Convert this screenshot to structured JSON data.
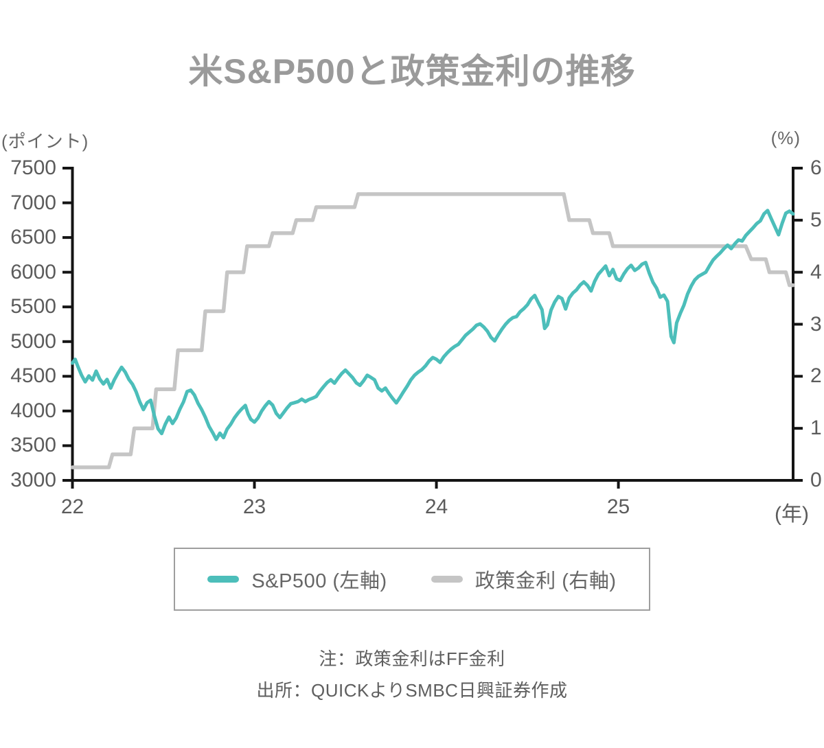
{
  "title": "米S&P500と政策金利の推移",
  "legend": {
    "items": [
      {
        "label": "S&P500 (左軸)",
        "color": "#4cbeba"
      },
      {
        "label": "政策金利 (右軸)",
        "color": "#c5c5c5"
      }
    ]
  },
  "notes": {
    "note": "注：政策金利はFF金利",
    "source": "出所：QUICKよりSMBC日興証券作成"
  },
  "chart_data": {
    "type": "line",
    "title": "米S&P500と政策金利の推移",
    "grid": false,
    "legend_position": "bottom",
    "x_axis": {
      "min": 22,
      "max": 25.96,
      "ticks": [
        22,
        23,
        24,
        25
      ],
      "unit_label": "(年)"
    },
    "left_axis": {
      "label": "(ポイント)",
      "min": 3000,
      "max": 7500,
      "tick_step": 500,
      "ticks": [
        7500,
        7000,
        6500,
        6000,
        5500,
        5000,
        4500,
        4000,
        3500,
        3000
      ]
    },
    "right_axis": {
      "label": "(%)",
      "min": 0,
      "max": 6,
      "tick_step": 1,
      "ticks": [
        6,
        5,
        4,
        3,
        2,
        1,
        0
      ]
    },
    "series": [
      {
        "name": "S&P500 (左軸)",
        "axis": "left",
        "color": "#4cbeba",
        "stroke_width": 5,
        "points": [
          [
            22.0,
            4690
          ],
          [
            22.015,
            4745
          ],
          [
            22.03,
            4640
          ],
          [
            22.05,
            4515
          ],
          [
            22.07,
            4420
          ],
          [
            22.09,
            4505
          ],
          [
            22.11,
            4445
          ],
          [
            22.13,
            4575
          ],
          [
            22.15,
            4460
          ],
          [
            22.17,
            4390
          ],
          [
            22.19,
            4455
          ],
          [
            22.21,
            4330
          ],
          [
            22.23,
            4450
          ],
          [
            22.25,
            4545
          ],
          [
            22.27,
            4630
          ],
          [
            22.29,
            4560
          ],
          [
            22.31,
            4455
          ],
          [
            22.33,
            4385
          ],
          [
            22.35,
            4275
          ],
          [
            22.37,
            4130
          ],
          [
            22.39,
            4020
          ],
          [
            22.41,
            4120
          ],
          [
            22.43,
            4155
          ],
          [
            22.45,
            3930
          ],
          [
            22.47,
            3745
          ],
          [
            22.49,
            3675
          ],
          [
            22.51,
            3810
          ],
          [
            22.53,
            3912
          ],
          [
            22.55,
            3820
          ],
          [
            22.57,
            3900
          ],
          [
            22.59,
            4025
          ],
          [
            22.61,
            4130
          ],
          [
            22.63,
            4280
          ],
          [
            22.65,
            4300
          ],
          [
            22.67,
            4230
          ],
          [
            22.69,
            4110
          ],
          [
            22.71,
            4020
          ],
          [
            22.73,
            3910
          ],
          [
            22.75,
            3780
          ],
          [
            22.77,
            3690
          ],
          [
            22.79,
            3590
          ],
          [
            22.81,
            3680
          ],
          [
            22.83,
            3615
          ],
          [
            22.85,
            3740
          ],
          [
            22.87,
            3810
          ],
          [
            22.89,
            3900
          ],
          [
            22.91,
            3970
          ],
          [
            22.93,
            4030
          ],
          [
            22.95,
            4080
          ],
          [
            22.965,
            3960
          ],
          [
            22.98,
            3880
          ],
          [
            23.0,
            3840
          ],
          [
            23.02,
            3900
          ],
          [
            23.04,
            4000
          ],
          [
            23.06,
            4075
          ],
          [
            23.08,
            4135
          ],
          [
            23.1,
            4085
          ],
          [
            23.12,
            3965
          ],
          [
            23.14,
            3905
          ],
          [
            23.16,
            3975
          ],
          [
            23.18,
            4045
          ],
          [
            23.2,
            4105
          ],
          [
            23.22,
            4120
          ],
          [
            23.24,
            4135
          ],
          [
            23.26,
            4170
          ],
          [
            23.28,
            4135
          ],
          [
            23.3,
            4165
          ],
          [
            23.32,
            4185
          ],
          [
            23.34,
            4210
          ],
          [
            23.36,
            4285
          ],
          [
            23.38,
            4350
          ],
          [
            23.4,
            4410
          ],
          [
            23.42,
            4450
          ],
          [
            23.44,
            4400
          ],
          [
            23.46,
            4475
          ],
          [
            23.48,
            4540
          ],
          [
            23.5,
            4589
          ],
          [
            23.52,
            4535
          ],
          [
            23.54,
            4480
          ],
          [
            23.56,
            4405
          ],
          [
            23.58,
            4370
          ],
          [
            23.6,
            4435
          ],
          [
            23.62,
            4515
          ],
          [
            23.64,
            4485
          ],
          [
            23.66,
            4450
          ],
          [
            23.68,
            4330
          ],
          [
            23.7,
            4290
          ],
          [
            23.72,
            4330
          ],
          [
            23.74,
            4250
          ],
          [
            23.76,
            4180
          ],
          [
            23.78,
            4117
          ],
          [
            23.8,
            4195
          ],
          [
            23.82,
            4280
          ],
          [
            23.84,
            4360
          ],
          [
            23.86,
            4450
          ],
          [
            23.88,
            4515
          ],
          [
            23.9,
            4560
          ],
          [
            23.92,
            4595
          ],
          [
            23.94,
            4650
          ],
          [
            23.96,
            4720
          ],
          [
            23.98,
            4770
          ],
          [
            24.0,
            4745
          ],
          [
            24.02,
            4700
          ],
          [
            24.04,
            4780
          ],
          [
            24.06,
            4840
          ],
          [
            24.08,
            4890
          ],
          [
            24.1,
            4930
          ],
          [
            24.12,
            4960
          ],
          [
            24.14,
            5025
          ],
          [
            24.16,
            5090
          ],
          [
            24.18,
            5135
          ],
          [
            24.2,
            5180
          ],
          [
            24.22,
            5235
          ],
          [
            24.24,
            5255
          ],
          [
            24.26,
            5210
          ],
          [
            24.28,
            5150
          ],
          [
            24.3,
            5060
          ],
          [
            24.32,
            5010
          ],
          [
            24.34,
            5100
          ],
          [
            24.36,
            5180
          ],
          [
            24.38,
            5250
          ],
          [
            24.4,
            5305
          ],
          [
            24.42,
            5345
          ],
          [
            24.44,
            5360
          ],
          [
            24.46,
            5430
          ],
          [
            24.48,
            5475
          ],
          [
            24.5,
            5530
          ],
          [
            24.52,
            5615
          ],
          [
            24.54,
            5665
          ],
          [
            24.56,
            5560
          ],
          [
            24.58,
            5460
          ],
          [
            24.595,
            5190
          ],
          [
            24.61,
            5240
          ],
          [
            24.63,
            5455
          ],
          [
            24.65,
            5570
          ],
          [
            24.67,
            5650
          ],
          [
            24.69,
            5620
          ],
          [
            24.71,
            5470
          ],
          [
            24.73,
            5630
          ],
          [
            24.75,
            5700
          ],
          [
            24.77,
            5745
          ],
          [
            24.79,
            5815
          ],
          [
            24.81,
            5860
          ],
          [
            24.83,
            5810
          ],
          [
            24.85,
            5730
          ],
          [
            24.87,
            5870
          ],
          [
            24.89,
            5970
          ],
          [
            24.91,
            6030
          ],
          [
            24.93,
            6090
          ],
          [
            24.95,
            5950
          ],
          [
            24.97,
            6040
          ],
          [
            24.99,
            5905
          ],
          [
            25.01,
            5880
          ],
          [
            25.03,
            5975
          ],
          [
            25.05,
            6050
          ],
          [
            25.07,
            6100
          ],
          [
            25.09,
            6025
          ],
          [
            25.11,
            6060
          ],
          [
            25.13,
            6115
          ],
          [
            25.15,
            6140
          ],
          [
            25.17,
            5985
          ],
          [
            25.19,
            5855
          ],
          [
            25.21,
            5770
          ],
          [
            25.23,
            5640
          ],
          [
            25.25,
            5670
          ],
          [
            25.27,
            5580
          ],
          [
            25.29,
            5075
          ],
          [
            25.305,
            4985
          ],
          [
            25.32,
            5270
          ],
          [
            25.34,
            5405
          ],
          [
            25.36,
            5525
          ],
          [
            25.38,
            5685
          ],
          [
            25.4,
            5800
          ],
          [
            25.42,
            5890
          ],
          [
            25.44,
            5940
          ],
          [
            25.46,
            5970
          ],
          [
            25.48,
            6000
          ],
          [
            25.5,
            6090
          ],
          [
            25.52,
            6175
          ],
          [
            25.54,
            6230
          ],
          [
            25.56,
            6280
          ],
          [
            25.58,
            6340
          ],
          [
            25.6,
            6390
          ],
          [
            25.62,
            6340
          ],
          [
            25.64,
            6410
          ],
          [
            25.66,
            6465
          ],
          [
            25.68,
            6450
          ],
          [
            25.7,
            6530
          ],
          [
            25.72,
            6585
          ],
          [
            25.74,
            6640
          ],
          [
            25.76,
            6700
          ],
          [
            25.78,
            6740
          ],
          [
            25.8,
            6840
          ],
          [
            25.82,
            6890
          ],
          [
            25.84,
            6770
          ],
          [
            25.86,
            6655
          ],
          [
            25.88,
            6540
          ],
          [
            25.9,
            6705
          ],
          [
            25.92,
            6850
          ],
          [
            25.94,
            6880
          ],
          [
            25.96,
            6840
          ]
        ]
      },
      {
        "name": "政策金利 (右軸)",
        "axis": "right",
        "color": "#c5c5c5",
        "stroke_width": 5.5,
        "points": [
          [
            22.0,
            0.25
          ],
          [
            22.2,
            0.25
          ],
          [
            22.22,
            0.5
          ],
          [
            22.32,
            0.5
          ],
          [
            22.34,
            1.0
          ],
          [
            22.44,
            1.0
          ],
          [
            22.46,
            1.75
          ],
          [
            22.56,
            1.75
          ],
          [
            22.58,
            2.5
          ],
          [
            22.71,
            2.5
          ],
          [
            22.73,
            3.25
          ],
          [
            22.83,
            3.25
          ],
          [
            22.85,
            4.0
          ],
          [
            22.94,
            4.0
          ],
          [
            22.96,
            4.5
          ],
          [
            23.08,
            4.5
          ],
          [
            23.1,
            4.75
          ],
          [
            23.21,
            4.75
          ],
          [
            23.23,
            5.0
          ],
          [
            23.32,
            5.0
          ],
          [
            23.34,
            5.25
          ],
          [
            23.55,
            5.25
          ],
          [
            23.57,
            5.5
          ],
          [
            24.7,
            5.5
          ],
          [
            24.73,
            5.0
          ],
          [
            24.84,
            5.0
          ],
          [
            24.86,
            4.75
          ],
          [
            24.95,
            4.75
          ],
          [
            24.97,
            4.5
          ],
          [
            25.7,
            4.5
          ],
          [
            25.73,
            4.25
          ],
          [
            25.81,
            4.25
          ],
          [
            25.83,
            4.0
          ],
          [
            25.92,
            4.0
          ],
          [
            25.94,
            3.75
          ],
          [
            25.96,
            3.75
          ]
        ]
      }
    ]
  }
}
